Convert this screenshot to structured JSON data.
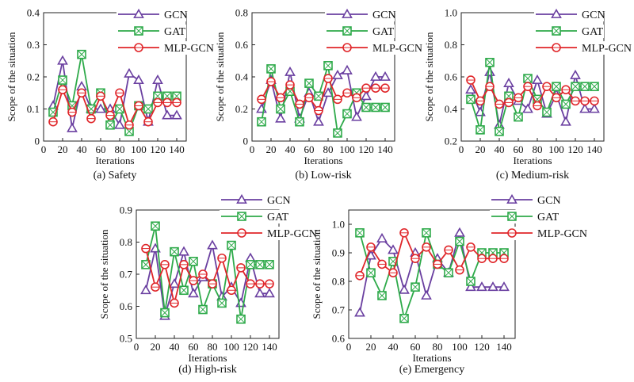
{
  "figure": {
    "series_colors": {
      "GCN": "#6a3fa0",
      "GAT": "#2eaa4a",
      "MLP-GCN": "#e0262a"
    }
  },
  "chart_data": [
    {
      "type": "line",
      "caption": "(a) Safety",
      "xlabel": "Iterations",
      "ylabel": "Scope of the situation",
      "xlim": [
        0,
        150
      ],
      "ylim": [
        0,
        0.4
      ],
      "xticks": [
        "0",
        "20",
        "40",
        "60",
        "80",
        "100",
        "120",
        "140"
      ],
      "yticks": [
        "0",
        "0.1",
        "0.2",
        "0.3",
        "0.4"
      ],
      "x": [
        10,
        20,
        30,
        40,
        50,
        60,
        70,
        80,
        90,
        100,
        110,
        120,
        130,
        140
      ],
      "series": [
        {
          "name": "GCN",
          "values": [
            0.11,
            0.25,
            0.04,
            0.17,
            0.1,
            0.1,
            0.1,
            0.05,
            0.21,
            0.19,
            0.06,
            0.19,
            0.08,
            0.08
          ]
        },
        {
          "name": "GAT",
          "values": [
            0.09,
            0.19,
            0.11,
            0.27,
            0.1,
            0.15,
            0.05,
            0.1,
            0.03,
            0.11,
            0.1,
            0.14,
            0.14,
            0.14
          ]
        },
        {
          "name": "MLP-GCN",
          "values": [
            0.06,
            0.16,
            0.09,
            0.15,
            0.07,
            0.14,
            0.08,
            0.15,
            0.05,
            0.11,
            0.06,
            0.12,
            0.12,
            0.12
          ]
        }
      ]
    },
    {
      "type": "line",
      "caption": "(b) Low-risk",
      "xlabel": "Iterations",
      "ylabel": "Scope of the situation",
      "xlim": [
        0,
        150
      ],
      "ylim": [
        0,
        0.8
      ],
      "xticks": [
        "0",
        "20",
        "40",
        "60",
        "80",
        "100",
        "120",
        "140"
      ],
      "yticks": [
        "0",
        "0.2",
        "0.4",
        "0.6",
        "0.8"
      ],
      "x": [
        10,
        20,
        30,
        40,
        50,
        60,
        70,
        80,
        90,
        100,
        110,
        120,
        130,
        140
      ],
      "series": [
        {
          "name": "GCN",
          "values": [
            0.2,
            0.38,
            0.14,
            0.43,
            0.14,
            0.3,
            0.12,
            0.3,
            0.41,
            0.44,
            0.15,
            0.28,
            0.4,
            0.4
          ]
        },
        {
          "name": "GAT",
          "values": [
            0.12,
            0.45,
            0.2,
            0.31,
            0.12,
            0.36,
            0.28,
            0.47,
            0.05,
            0.17,
            0.3,
            0.21,
            0.21,
            0.21
          ]
        },
        {
          "name": "MLP-GCN",
          "values": [
            0.26,
            0.37,
            0.27,
            0.35,
            0.23,
            0.27,
            0.19,
            0.39,
            0.26,
            0.3,
            0.27,
            0.33,
            0.33,
            0.33
          ]
        }
      ]
    },
    {
      "type": "line",
      "caption": "(c) Medium-risk",
      "xlabel": "Iterations",
      "ylabel": "Scope of the situation",
      "xlim": [
        0,
        150
      ],
      "ylim": [
        0.2,
        1.0
      ],
      "xticks": [
        "0",
        "20",
        "40",
        "60",
        "80",
        "100",
        "120",
        "140"
      ],
      "yticks": [
        "0.2",
        "0.4",
        "0.6",
        "0.8",
        "1.0"
      ],
      "x": [
        10,
        20,
        30,
        40,
        50,
        60,
        70,
        80,
        90,
        100,
        110,
        120,
        130,
        140
      ],
      "series": [
        {
          "name": "GCN",
          "values": [
            0.52,
            0.38,
            0.63,
            0.3,
            0.56,
            0.45,
            0.4,
            0.58,
            0.37,
            0.49,
            0.32,
            0.61,
            0.4,
            0.4
          ]
        },
        {
          "name": "GAT",
          "values": [
            0.46,
            0.27,
            0.69,
            0.26,
            0.48,
            0.35,
            0.59,
            0.46,
            0.38,
            0.54,
            0.43,
            0.54,
            0.54,
            0.54
          ]
        },
        {
          "name": "MLP-GCN",
          "values": [
            0.58,
            0.45,
            0.54,
            0.43,
            0.44,
            0.47,
            0.54,
            0.42,
            0.54,
            0.47,
            0.52,
            0.45,
            0.45,
            0.45
          ]
        }
      ]
    },
    {
      "type": "line",
      "caption": "(d) High-risk",
      "xlabel": "Iterations",
      "ylabel": "Scope of the situation",
      "xlim": [
        0,
        150
      ],
      "ylim": [
        0.5,
        0.9
      ],
      "xticks": [
        "0",
        "20",
        "40",
        "60",
        "80",
        "100",
        "120",
        "140"
      ],
      "yticks": [
        "0.5",
        "0.6",
        "0.7",
        "0.8",
        "0.9"
      ],
      "x": [
        10,
        20,
        30,
        40,
        50,
        60,
        70,
        80,
        90,
        100,
        110,
        120,
        130,
        140
      ],
      "series": [
        {
          "name": "GCN",
          "values": [
            0.65,
            0.78,
            0.57,
            0.67,
            0.77,
            0.64,
            0.69,
            0.79,
            0.63,
            0.66,
            0.61,
            0.75,
            0.64,
            0.64
          ]
        },
        {
          "name": "GAT",
          "values": [
            0.73,
            0.85,
            0.58,
            0.77,
            0.65,
            0.74,
            0.59,
            0.67,
            0.61,
            0.79,
            0.56,
            0.73,
            0.73,
            0.73
          ]
        },
        {
          "name": "MLP-GCN",
          "values": [
            0.78,
            0.66,
            0.73,
            0.61,
            0.73,
            0.68,
            0.7,
            0.67,
            0.75,
            0.65,
            0.72,
            0.67,
            0.67,
            0.67
          ]
        }
      ]
    },
    {
      "type": "line",
      "caption": "(e) Emergency",
      "xlabel": "Iterations",
      "ylabel": "Scope of the situation",
      "xlim": [
        0,
        150
      ],
      "ylim": [
        0.6,
        1.05
      ],
      "xticks": [
        "0",
        "20",
        "40",
        "60",
        "80",
        "100",
        "120",
        "140"
      ],
      "yticks": [
        "0.6",
        "0.7",
        "0.8",
        "0.9",
        "1.0"
      ],
      "x": [
        10,
        20,
        30,
        40,
        50,
        60,
        70,
        80,
        90,
        100,
        110,
        120,
        130,
        140
      ],
      "series": [
        {
          "name": "GCN",
          "values": [
            0.69,
            0.89,
            0.95,
            0.91,
            0.77,
            0.9,
            0.75,
            0.88,
            0.83,
            0.97,
            0.78,
            0.78,
            0.78,
            0.78
          ]
        },
        {
          "name": "GAT",
          "values": [
            0.97,
            0.83,
            0.75,
            0.87,
            0.67,
            0.78,
            0.97,
            0.86,
            0.83,
            0.94,
            0.8,
            0.9,
            0.9,
            0.9
          ]
        },
        {
          "name": "MLP-GCN",
          "values": [
            0.82,
            0.92,
            0.86,
            0.83,
            0.97,
            0.88,
            0.92,
            0.86,
            0.91,
            0.84,
            0.92,
            0.88,
            0.88,
            0.88
          ]
        }
      ]
    }
  ]
}
